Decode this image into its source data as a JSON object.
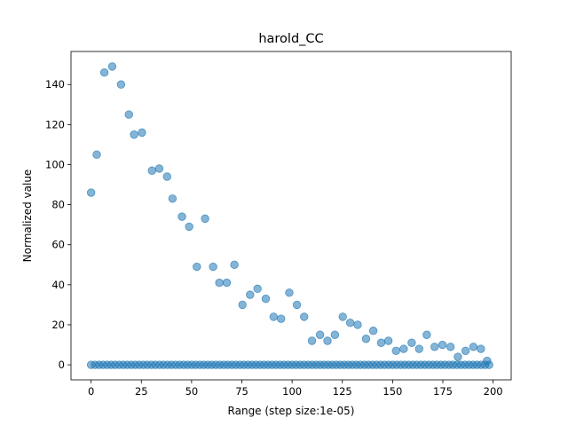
{
  "chart_data": {
    "type": "scatter",
    "title": "harold_CC",
    "xlabel": "Range (step size:1e-05)",
    "ylabel": "Normalized value",
    "xlim": [
      -10,
      209
    ],
    "ylim": [
      -7.5,
      156.5
    ],
    "xticks": [
      0,
      25,
      50,
      75,
      100,
      125,
      150,
      175,
      200
    ],
    "yticks": [
      0,
      20,
      40,
      60,
      80,
      100,
      120,
      140
    ],
    "grid": false,
    "legend": "none",
    "marker_color": "#1f77b4",
    "marker_alpha": 0.55,
    "series": [
      {
        "x": [
          0,
          2.8,
          6.6,
          10.5,
          14.9,
          18.8,
          21.4,
          25.3,
          30.3,
          33.9,
          37.8,
          40.5,
          45.2,
          48.8,
          52.6,
          56.7,
          60.7,
          63.8,
          67.5,
          71.3,
          75.3,
          79.1,
          82.8,
          86.9,
          90.8,
          94.5,
          98.6,
          102.4,
          106.0,
          109.9,
          113.9,
          117.6,
          121.3,
          125.2,
          128.9,
          132.6,
          136.8,
          140.4,
          144.3,
          147.9,
          151.7,
          155.5,
          159.5,
          163.2,
          167.0,
          170.9,
          174.8,
          178.8,
          182.5,
          186.3,
          190.2,
          193.9,
          197.0
        ],
        "y": [
          86,
          105,
          146,
          149,
          140,
          125,
          115,
          116,
          97,
          98,
          94,
          83,
          74,
          69,
          49,
          73,
          49,
          41,
          41,
          50,
          30,
          35,
          38,
          33,
          24,
          23,
          36,
          30,
          24,
          12,
          15,
          12,
          15,
          24,
          21,
          20,
          13,
          17,
          11,
          12,
          7,
          8,
          11,
          8,
          15,
          9,
          10,
          9,
          4,
          7,
          9,
          8,
          2
        ]
      },
      {
        "x": [
          0,
          198
        ],
        "y": [
          0,
          0
        ],
        "step": 2
      }
    ]
  }
}
